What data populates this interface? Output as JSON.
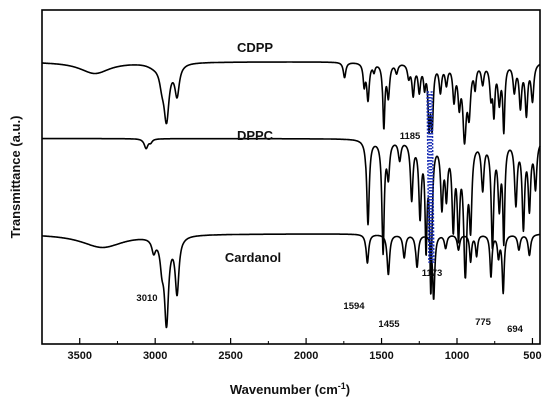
{
  "chart_data": {
    "type": "line",
    "title": "",
    "xlabel": "Wavenumber (cm",
    "xlabel_sup": "-1",
    "xlabel_end": ")",
    "ylabel": "Transmittance (a.u.)",
    "xlim": [
      3750,
      450
    ],
    "x_ticks": [
      3500,
      3000,
      2500,
      2000,
      1500,
      1000,
      500
    ],
    "x_tick_labels": [
      "3500",
      "3000",
      "2500",
      "2000",
      "1500",
      "1000",
      "500"
    ],
    "y_ticks": "none",
    "grid": false,
    "colors": {
      "line": "#000000",
      "highlight": "#1a2fb5"
    },
    "series": [
      {
        "name": "CDPP",
        "baseline": 0.845,
        "bands": [
          [
            3400,
            30,
            120
          ],
          [
            3010,
            7,
            50
          ],
          [
            2955,
            40,
            20
          ],
          [
            2925,
            140,
            20
          ],
          [
            2855,
            80,
            18
          ],
          [
            1745,
            40,
            10
          ],
          [
            1615,
            55,
            8
          ],
          [
            1590,
            95,
            10
          ],
          [
            1550,
            20,
            8
          ],
          [
            1485,
            165,
            8
          ],
          [
            1455,
            85,
            10
          ],
          [
            1400,
            25,
            10
          ],
          [
            1320,
            35,
            10
          ],
          [
            1290,
            80,
            10
          ],
          [
            1250,
            70,
            10
          ],
          [
            1215,
            55,
            8
          ],
          [
            1185,
            150,
            8
          ],
          [
            1165,
            155,
            9
          ],
          [
            1110,
            70,
            10
          ],
          [
            1070,
            50,
            10
          ],
          [
            1020,
            90,
            10
          ],
          [
            985,
            95,
            10
          ],
          [
            950,
            185,
            13
          ],
          [
            920,
            120,
            12
          ],
          [
            880,
            55,
            8
          ],
          [
            830,
            50,
            10
          ],
          [
            775,
            80,
            10
          ],
          [
            755,
            120,
            8
          ],
          [
            720,
            95,
            10
          ],
          [
            690,
            170,
            8
          ],
          [
            620,
            70,
            10
          ],
          [
            580,
            110,
            10
          ],
          [
            540,
            130,
            10
          ],
          [
            500,
            95,
            10
          ]
        ]
      },
      {
        "name": "DPPC",
        "baseline": 0.615,
        "bands": [
          [
            3060,
            25,
            15
          ],
          [
            3030,
            8,
            12
          ],
          [
            1590,
            220,
            10
          ],
          [
            1490,
            290,
            9
          ],
          [
            1455,
            90,
            10
          ],
          [
            1380,
            50,
            10
          ],
          [
            1300,
            150,
            10
          ],
          [
            1245,
            190,
            10
          ],
          [
            1205,
            260,
            8
          ],
          [
            1173,
            380,
            9
          ],
          [
            1100,
            160,
            10
          ],
          [
            1070,
            130,
            10
          ],
          [
            1025,
            210,
            10
          ],
          [
            990,
            220,
            10
          ],
          [
            945,
            330,
            13
          ],
          [
            910,
            200,
            10
          ],
          [
            830,
            120,
            10
          ],
          [
            765,
            270,
            10
          ],
          [
            720,
            160,
            10
          ],
          [
            690,
            250,
            8
          ],
          [
            610,
            160,
            10
          ],
          [
            560,
            220,
            10
          ],
          [
            520,
            170,
            10
          ],
          [
            480,
            120,
            10
          ]
        ]
      },
      {
        "name": "Cardanol",
        "baseline": 0.33,
        "bands": [
          [
            3350,
            35,
            170
          ],
          [
            3010,
            35,
            15
          ],
          [
            2955,
            60,
            15
          ],
          [
            2925,
            220,
            16
          ],
          [
            2855,
            145,
            15
          ],
          [
            1594,
            75,
            10
          ],
          [
            1455,
            105,
            10
          ],
          [
            1350,
            60,
            10
          ],
          [
            1265,
            85,
            10
          ],
          [
            1155,
            170,
            9
          ],
          [
            1075,
            35,
            10
          ],
          [
            990,
            40,
            10
          ],
          [
            910,
            70,
            8
          ],
          [
            870,
            55,
            8
          ],
          [
            775,
            110,
            8
          ],
          [
            725,
            55,
            8
          ],
          [
            694,
            150,
            8
          ],
          [
            590,
            40,
            10
          ],
          [
            520,
            55,
            10
          ]
        ]
      }
    ],
    "series_labels": [
      "CDPP",
      "DPPC",
      "Cardanol"
    ],
    "annotations": [
      {
        "text": "1185",
        "x": 1185
      },
      {
        "text": "1173",
        "x": 1173
      },
      {
        "text": "3010",
        "x": 3010
      },
      {
        "text": "1594",
        "x": 1594
      },
      {
        "text": "1455",
        "x": 1455
      },
      {
        "text": "775",
        "x": 775
      },
      {
        "text": "694",
        "x": 694
      }
    ]
  }
}
